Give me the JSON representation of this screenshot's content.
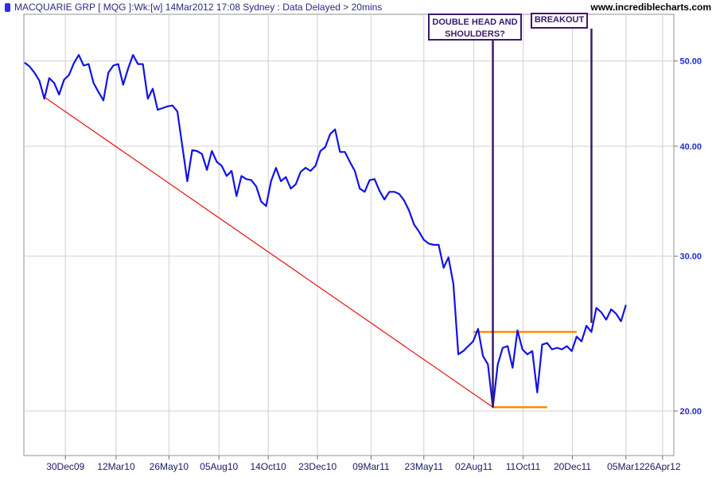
{
  "header": {
    "title": "MACQUARIE GRP [ MQG ]:Wk:[w]  14Mar2012 17:08 Sydney : Data Delayed > 20mins",
    "site": "www.incrediblecharts.com"
  },
  "colors": {
    "price": "#1212e6",
    "trendline": "#e61212",
    "support": "#ff8c00",
    "annotation": "#3b1a6e",
    "axis_labels": "#1f2fd0",
    "grid": "#d0d0d0"
  },
  "chart_data": {
    "type": "line",
    "title": "MACQUARIE GRP [ MQG ]:Wk:[w]",
    "y_scale": "log",
    "ylim": [
      17.8,
      56.5
    ],
    "y_ticks": [
      20,
      30,
      40,
      50
    ],
    "y_tick_labels": [
      "20.00",
      "30.00",
      "40.00",
      "50.00"
    ],
    "x_start": "2009-11-01",
    "x_end": "2012-05-12",
    "x_ticks": [
      {
        "date": "2009-12-30",
        "label": "30Dec09"
      },
      {
        "date": "2010-03-12",
        "label": "12Mar10"
      },
      {
        "date": "2010-05-26",
        "label": "26May10"
      },
      {
        "date": "2010-08-05",
        "label": "05Aug10"
      },
      {
        "date": "2010-10-14",
        "label": "14Oct10"
      },
      {
        "date": "2010-12-23",
        "label": "23Dec10"
      },
      {
        "date": "2011-03-09",
        "label": "09Mar11"
      },
      {
        "date": "2011-05-23",
        "label": "23May11"
      },
      {
        "date": "2011-08-02",
        "label": "02Aug11"
      },
      {
        "date": "2011-10-11",
        "label": "11Oct11"
      },
      {
        "date": "2011-12-20",
        "label": "20Dec11"
      },
      {
        "date": "2012-03-05",
        "label": "05Mar12"
      },
      {
        "date": "2012-04-26",
        "label": "26Apr12"
      }
    ],
    "grid": true,
    "series": [
      {
        "values": [
          [
            "2009-11-02",
            49.8
          ],
          [
            "2009-11-09",
            49.3
          ],
          [
            "2009-11-16",
            48.5
          ],
          [
            "2009-11-23",
            47.5
          ],
          [
            "2009-11-30",
            45.3
          ],
          [
            "2009-12-07",
            47.8
          ],
          [
            "2009-12-14",
            47.2
          ],
          [
            "2009-12-21",
            45.8
          ],
          [
            "2009-12-28",
            47.6
          ],
          [
            "2010-01-04",
            48.2
          ],
          [
            "2010-01-11",
            49.7
          ],
          [
            "2010-01-18",
            50.8
          ],
          [
            "2010-01-25",
            49.4
          ],
          [
            "2010-02-01",
            49.6
          ],
          [
            "2010-02-08",
            47.2
          ],
          [
            "2010-02-15",
            46.1
          ],
          [
            "2010-02-22",
            45.1
          ],
          [
            "2010-03-01",
            48.5
          ],
          [
            "2010-03-08",
            49.4
          ],
          [
            "2010-03-15",
            49.6
          ],
          [
            "2010-03-22",
            47.0
          ],
          [
            "2010-03-29",
            49.0
          ],
          [
            "2010-04-05",
            50.8
          ],
          [
            "2010-04-12",
            49.6
          ],
          [
            "2010-04-19",
            49.6
          ],
          [
            "2010-04-26",
            45.3
          ],
          [
            "2010-05-03",
            46.5
          ],
          [
            "2010-05-10",
            44.0
          ],
          [
            "2010-05-17",
            44.2
          ],
          [
            "2010-05-24",
            44.4
          ],
          [
            "2010-05-31",
            44.5
          ],
          [
            "2010-06-07",
            43.8
          ],
          [
            "2010-06-14",
            40.0
          ],
          [
            "2010-06-21",
            36.5
          ],
          [
            "2010-06-28",
            39.6
          ],
          [
            "2010-07-05",
            39.5
          ],
          [
            "2010-07-12",
            39.2
          ],
          [
            "2010-07-19",
            37.6
          ],
          [
            "2010-07-26",
            39.5
          ],
          [
            "2010-08-02",
            38.4
          ],
          [
            "2010-08-09",
            38.0
          ],
          [
            "2010-08-16",
            37.0
          ],
          [
            "2010-08-23",
            37.5
          ],
          [
            "2010-08-30",
            35.1
          ],
          [
            "2010-09-06",
            37.0
          ],
          [
            "2010-09-13",
            36.7
          ],
          [
            "2010-09-20",
            36.6
          ],
          [
            "2010-09-27",
            36.0
          ],
          [
            "2010-10-04",
            34.6
          ],
          [
            "2010-10-11",
            34.2
          ],
          [
            "2010-10-18",
            36.5
          ],
          [
            "2010-10-25",
            37.8
          ],
          [
            "2010-11-01",
            36.5
          ],
          [
            "2010-11-08",
            36.9
          ],
          [
            "2010-11-15",
            35.8
          ],
          [
            "2010-11-22",
            36.2
          ],
          [
            "2010-11-29",
            37.4
          ],
          [
            "2010-12-06",
            37.8
          ],
          [
            "2010-12-13",
            37.5
          ],
          [
            "2010-12-20",
            38.0
          ],
          [
            "2010-12-27",
            39.5
          ],
          [
            "2011-01-03",
            39.9
          ],
          [
            "2011-01-10",
            41.3
          ],
          [
            "2011-01-17",
            41.8
          ],
          [
            "2011-01-24",
            39.4
          ],
          [
            "2011-01-31",
            39.4
          ],
          [
            "2011-02-07",
            38.4
          ],
          [
            "2011-02-14",
            37.5
          ],
          [
            "2011-02-21",
            35.8
          ],
          [
            "2011-02-28",
            35.5
          ],
          [
            "2011-03-07",
            36.6
          ],
          [
            "2011-03-14",
            36.7
          ],
          [
            "2011-03-21",
            35.6
          ],
          [
            "2011-03-28",
            34.8
          ],
          [
            "2011-04-04",
            35.5
          ],
          [
            "2011-04-11",
            35.5
          ],
          [
            "2011-04-18",
            35.3
          ],
          [
            "2011-04-25",
            34.7
          ],
          [
            "2011-05-02",
            33.8
          ],
          [
            "2011-05-09",
            32.6
          ],
          [
            "2011-05-16",
            32.0
          ],
          [
            "2011-05-23",
            31.3
          ],
          [
            "2011-05-30",
            31.0
          ],
          [
            "2011-06-06",
            30.9
          ],
          [
            "2011-06-13",
            30.9
          ],
          [
            "2011-06-20",
            29.1
          ],
          [
            "2011-06-27",
            29.9
          ],
          [
            "2011-07-04",
            27.9
          ],
          [
            "2011-07-11",
            23.2
          ],
          [
            "2011-07-18",
            23.4
          ],
          [
            "2011-07-25",
            23.7
          ],
          [
            "2011-08-01",
            24.0
          ],
          [
            "2011-08-08",
            24.8
          ],
          [
            "2011-08-15",
            23.1
          ],
          [
            "2011-08-22",
            22.6
          ],
          [
            "2011-08-29",
            20.2
          ],
          [
            "2011-09-05",
            22.6
          ],
          [
            "2011-09-12",
            23.6
          ],
          [
            "2011-09-19",
            23.7
          ],
          [
            "2011-09-26",
            22.4
          ],
          [
            "2011-10-03",
            24.7
          ],
          [
            "2011-10-10",
            23.5
          ],
          [
            "2011-10-17",
            23.2
          ],
          [
            "2011-10-24",
            23.4
          ],
          [
            "2011-10-31",
            21.0
          ],
          [
            "2011-11-07",
            23.8
          ],
          [
            "2011-11-14",
            23.9
          ],
          [
            "2011-11-21",
            23.5
          ],
          [
            "2011-11-28",
            23.6
          ],
          [
            "2011-12-05",
            23.5
          ],
          [
            "2011-12-12",
            23.7
          ],
          [
            "2011-12-19",
            23.4
          ],
          [
            "2011-12-26",
            24.3
          ],
          [
            "2012-01-02",
            24.0
          ],
          [
            "2012-01-09",
            25.0
          ],
          [
            "2012-01-16",
            24.6
          ],
          [
            "2012-01-23",
            26.2
          ],
          [
            "2012-01-30",
            25.9
          ],
          [
            "2012-02-06",
            25.4
          ],
          [
            "2012-02-13",
            26.1
          ],
          [
            "2012-02-20",
            25.8
          ],
          [
            "2012-02-27",
            25.3
          ],
          [
            "2012-03-05",
            26.4
          ]
        ]
      }
    ],
    "trendline": [
      [
        "2009-11-30",
        45.5
      ],
      [
        "2011-08-29",
        20.2
      ]
    ],
    "support_lines": [
      {
        "from": "2011-08-01",
        "to": "2011-12-26",
        "value": 24.6
      },
      {
        "from": "2011-08-29",
        "to": "2011-11-14",
        "value": 20.2
      }
    ],
    "annotations": [
      {
        "text": "DOUBLE HEAD AND SHOULDERS?",
        "line_date": "2011-08-29",
        "line_to_value": 20.2
      },
      {
        "text": "BREAKOUT",
        "line_date": "2012-01-16",
        "line_to_value": 25.2
      }
    ]
  }
}
